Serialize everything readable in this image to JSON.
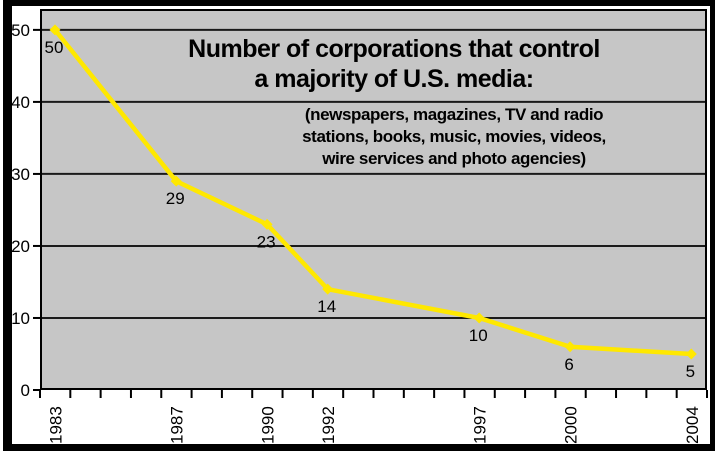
{
  "window": {
    "background_color": "#FFFFFF",
    "frame_color": "#000000"
  },
  "chart_data": {
    "type": "line",
    "title_line1": "Number of corporations that control",
    "title_line2": "a majority of U.S. media:",
    "subtitle_lines": [
      "(newspapers, magazines, TV and radio",
      "stations, books, music, movies, videos,",
      "wire services and photo agencies)"
    ],
    "series": [
      {
        "name": "corporations-controlling-us-media",
        "x": [
          1983,
          1987,
          1990,
          1992,
          1997,
          2000,
          2004
        ],
        "values": [
          50,
          29,
          23,
          14,
          10,
          6,
          5
        ]
      }
    ],
    "point_labels": [
      "50",
      "29",
      "23",
      "14",
      "10",
      "6",
      "5"
    ],
    "x_tick_labels": [
      "1983",
      "1987",
      "1990",
      "1992",
      "1997",
      "2000",
      "2004"
    ],
    "y_ticks": [
      0,
      10,
      20,
      30,
      40,
      50
    ],
    "x_range_years": [
      1982.5,
      2004.5
    ],
    "ylim": [
      0,
      52.9
    ],
    "grid": "horizontal",
    "legend": "none",
    "marker_shape": "diamond",
    "colors": {
      "line": "#FFE800",
      "marker": "#FFE800",
      "plot_background": "#C6C6C6",
      "gridline": "#1A1A1A",
      "axis": "#000000",
      "text": "#000000"
    }
  }
}
